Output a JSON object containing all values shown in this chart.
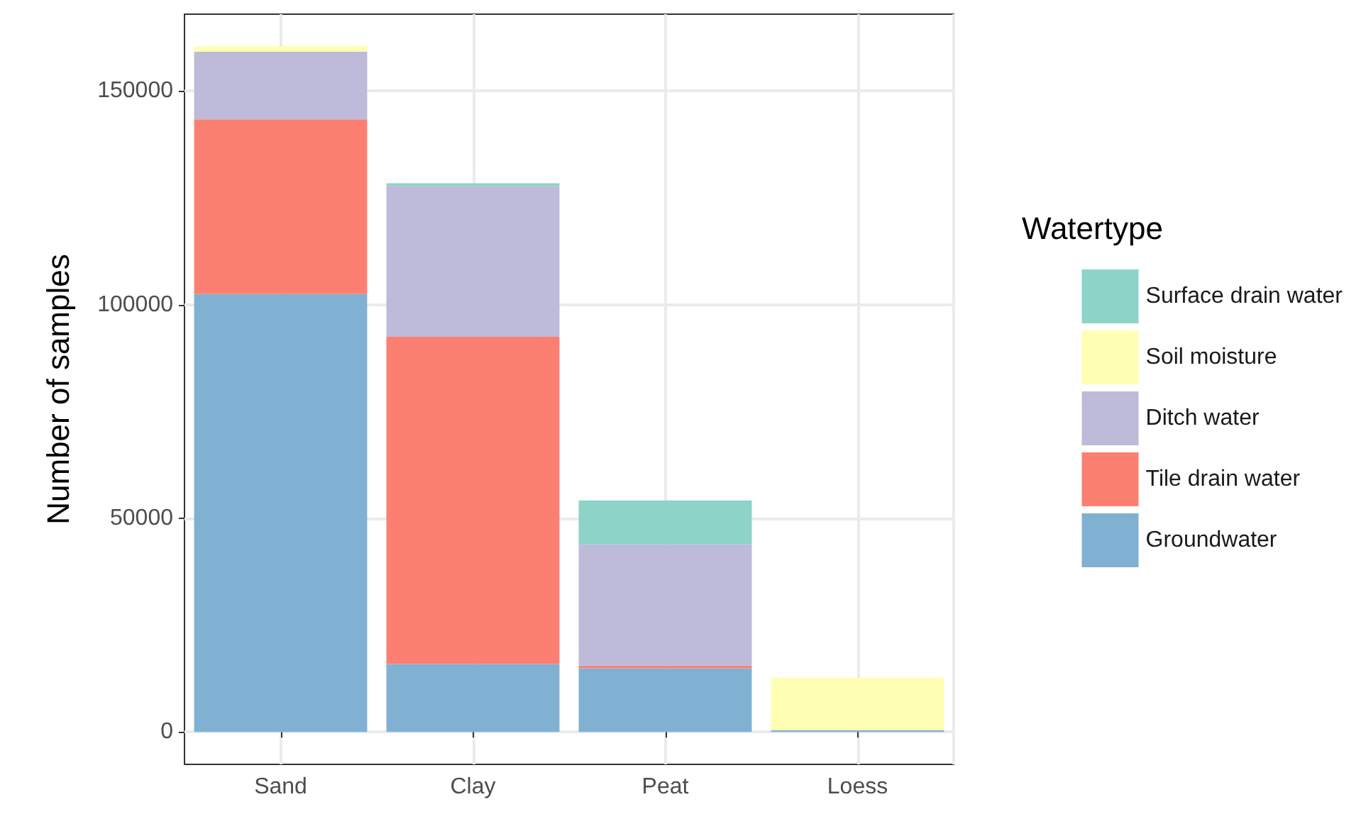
{
  "chart_data": {
    "type": "bar",
    "stacked": true,
    "ylabel": "Number of samples",
    "legend_title": "Watertype",
    "categories": [
      "Sand",
      "Clay",
      "Peat",
      "Loess"
    ],
    "series": [
      {
        "name": "Groundwater",
        "color": "#80b1d3",
        "values": [
          102500,
          15900,
          14900,
          400
        ]
      },
      {
        "name": "Tile drain water",
        "color": "#fb8072",
        "values": [
          40900,
          76600,
          600,
          0
        ]
      },
      {
        "name": "Ditch water",
        "color": "#bebada",
        "values": [
          15800,
          35300,
          28400,
          0
        ]
      },
      {
        "name": "Soil moisture",
        "color": "#ffffb3",
        "values": [
          1300,
          0,
          0,
          12300
        ]
      },
      {
        "name": "Surface drain water",
        "color": "#8dd3c7",
        "values": [
          0,
          600,
          10300,
          0
        ]
      }
    ],
    "ylim": [
      -7600,
      168000
    ],
    "yticks": [
      0,
      50000,
      100000,
      150000
    ],
    "grid": true,
    "legend": "right"
  }
}
